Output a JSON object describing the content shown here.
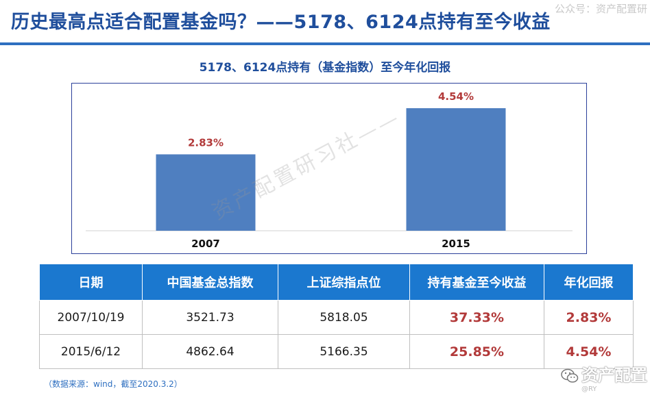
{
  "watermarks": {
    "top": "公众号：资产配置研",
    "diagonal": "资产配置研习社——",
    "bottom": "资产配置",
    "bottom_sub": "@RY"
  },
  "page": {
    "title": "历史最高点适合配置基金吗？——5178、6124点持有至今收益"
  },
  "chart_data": {
    "type": "bar",
    "title": "5178、6124点持有（基金指数）至今年化回报",
    "categories": [
      "2007",
      "2015"
    ],
    "values": [
      2.83,
      4.54
    ],
    "data_labels": [
      "2.83%",
      "4.54%"
    ],
    "ylim": [
      0,
      5.2
    ],
    "grid": false,
    "legend": "none",
    "bar_color": "#4f7fc0",
    "label_color": "#b23a3a"
  },
  "table": {
    "headers": [
      "日期",
      "中国基金总指数",
      "上证综指点位",
      "持有基金至今收益",
      "年化回报"
    ],
    "rows": [
      [
        "2007/10/19",
        "3521.73",
        "5818.05",
        "37.33%",
        "2.83%"
      ],
      [
        "2015/6/12",
        "4862.64",
        "5166.35",
        "25.85%",
        "4.54%"
      ]
    ]
  },
  "source_note": "（数据来源：wind，截至2020.3.2）",
  "colors": {
    "title": "#1f4e9c",
    "header_bg": "#1b78cf",
    "accent_red": "#b23a3a"
  }
}
